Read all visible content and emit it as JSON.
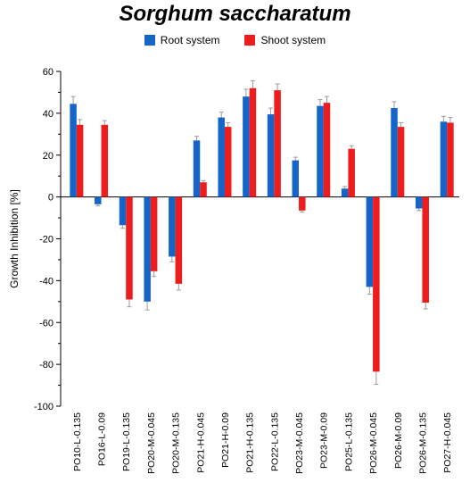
{
  "chart_data": {
    "type": "bar",
    "title": "Sorghum saccharatum",
    "ylabel": "Growth Inhibition [%]",
    "xlabel": "",
    "ylim": [
      -100,
      60
    ],
    "yticks": [
      -100,
      -80,
      -60,
      -40,
      -20,
      0,
      20,
      40,
      60
    ],
    "grid": false,
    "legend_position": "top-center",
    "categories": [
      "PO10-L-0.135",
      "PO16-L-0.09",
      "PO19-L-0.135",
      "PO20-M-0.045",
      "PO20-M-0.135",
      "PO21-H-0.045",
      "PO21-H-0.09",
      "PO21-H-0.135",
      "PO22-L-0.135",
      "PO23-M-0.045",
      "PO23-M-0.09",
      "PO25-L-0.135",
      "PO26-M-0.045",
      "PO26-M-0.09",
      "PO26-M-0.135",
      "PO27-H-0.045"
    ],
    "series": [
      {
        "name": "Root system",
        "color": "#1565c8",
        "values": [
          44.5,
          -3.5,
          -13.5,
          -50,
          -28.5,
          27,
          38,
          48,
          39.5,
          17.5,
          43.5,
          4,
          -43,
          42.5,
          -5.5,
          36
        ],
        "errors": [
          3.5,
          0.8,
          1.5,
          4,
          2.5,
          2,
          2.5,
          3.5,
          3,
          1.5,
          3,
          1,
          3.5,
          3,
          1,
          2.5
        ]
      },
      {
        "name": "Shoot system",
        "color": "#ee1c1c",
        "values": [
          34.5,
          34.5,
          -49,
          -35.5,
          -41.5,
          7,
          33.5,
          52,
          51,
          -6.5,
          45,
          23,
          -83.5,
          33.5,
          -50.5,
          35.5
        ],
        "errors": [
          2.5,
          2,
          3.5,
          2.5,
          3,
          0.8,
          2,
          3.5,
          3,
          0.8,
          3,
          1.5,
          6,
          2,
          3,
          2.5
        ]
      }
    ]
  }
}
